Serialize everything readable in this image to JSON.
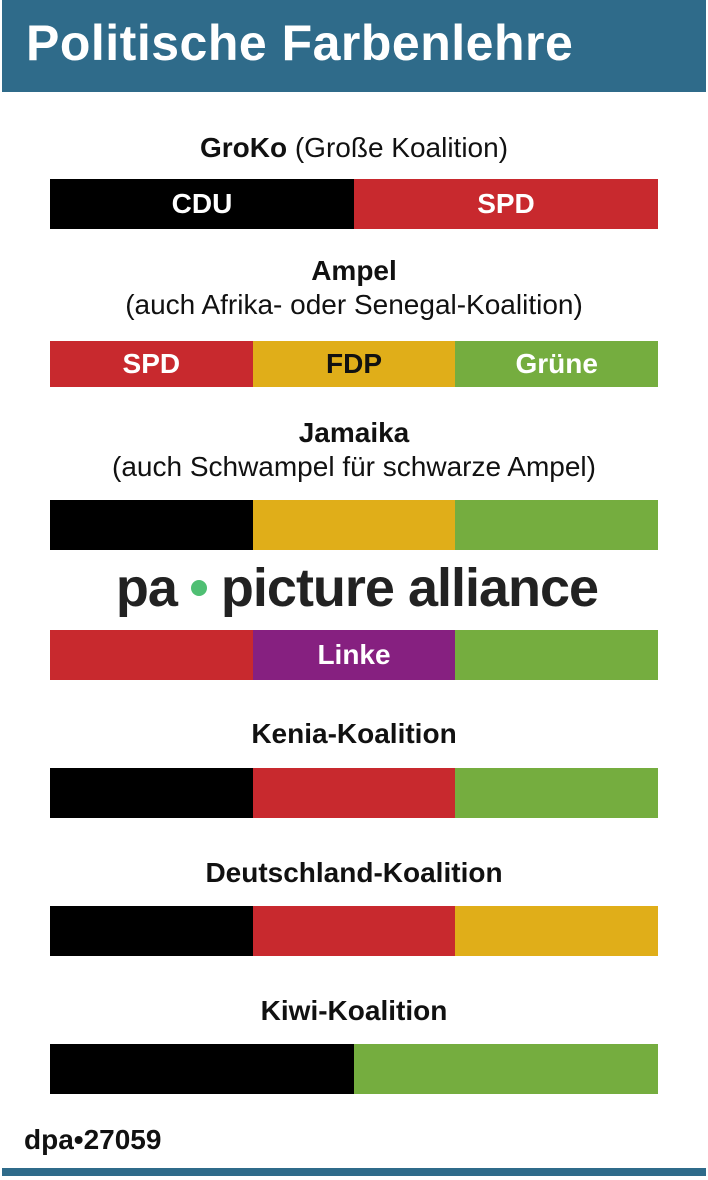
{
  "title": "Politische Farbenlehre",
  "colors": {
    "header": "#2f6b8a",
    "CDU": "#000000",
    "SPD": "#c8292e",
    "FDP": "#e0ae19",
    "Gruene": "#75ad3f",
    "Linke": "#862080"
  },
  "coalitions": [
    {
      "name": "GroKo",
      "subtitle": "(Große Koalition)",
      "segments": [
        {
          "label": "CDU",
          "color": "#000000"
        },
        {
          "label": "SPD",
          "color": "#c8292e"
        }
      ]
    },
    {
      "name": "Ampel",
      "subtitle": "(auch Afrika- oder Senegal-Koalition)",
      "segments": [
        {
          "label": "SPD",
          "color": "#c8292e"
        },
        {
          "label": "FDP",
          "color": "#e0ae19"
        },
        {
          "label": "Grüne",
          "color": "#75ad3f"
        }
      ]
    },
    {
      "name": "Jamaika",
      "subtitle": "(auch Schwampel für schwarze Ampel)",
      "segments": [
        {
          "label": "",
          "color": "#000000"
        },
        {
          "label": "",
          "color": "#e0ae19"
        },
        {
          "label": "",
          "color": "#75ad3f"
        }
      ]
    },
    {
      "segments": [
        {
          "label": "",
          "color": "#c8292e"
        },
        {
          "label": "Linke",
          "color": "#862080"
        },
        {
          "label": "",
          "color": "#75ad3f"
        }
      ]
    },
    {
      "name": "Kenia-Koalition",
      "segments": [
        {
          "label": "",
          "color": "#000000"
        },
        {
          "label": "",
          "color": "#c8292e"
        },
        {
          "label": "",
          "color": "#75ad3f"
        }
      ]
    },
    {
      "name": "Deutschland-Koalition",
      "segments": [
        {
          "label": "",
          "color": "#000000"
        },
        {
          "label": "",
          "color": "#c8292e"
        },
        {
          "label": "",
          "color": "#e0ae19"
        }
      ]
    },
    {
      "name": "Kiwi-Koalition",
      "segments": [
        {
          "label": "",
          "color": "#000000"
        },
        {
          "label": "",
          "color": "#75ad3f"
        }
      ]
    }
  ],
  "watermark": {
    "left": "pa",
    "right": "picture alliance"
  },
  "credit": "dpa•27059"
}
